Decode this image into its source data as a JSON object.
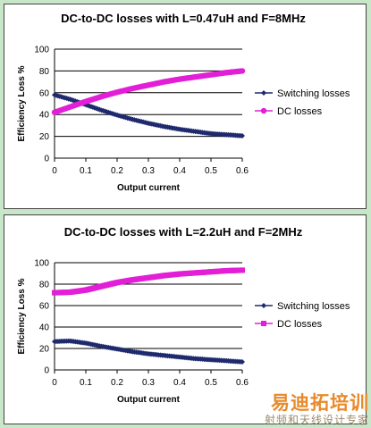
{
  "colors": {
    "switching": "#1f2a6e",
    "dc": "#e21fd6",
    "grid": "#000000",
    "background": "#c8e6c8"
  },
  "chart_data": [
    {
      "type": "line",
      "title": "DC-to-DC losses with L=0.47uH and F=8MHz",
      "xlabel": "Output current",
      "ylabel": "Efficiency Loss %",
      "xlim": [
        0,
        0.6
      ],
      "ylim": [
        0,
        100
      ],
      "xticks": [
        "0",
        "0.1",
        "0.2",
        "0.3",
        "0.4",
        "0.5",
        "0.6"
      ],
      "yticks": [
        "0",
        "20",
        "40",
        "60",
        "80",
        "100"
      ],
      "legend_position": "right",
      "series": [
        {
          "name": "Switching losses",
          "marker": "diamond",
          "x": [
            0,
            0.05,
            0.1,
            0.15,
            0.2,
            0.25,
            0.3,
            0.35,
            0.4,
            0.45,
            0.5,
            0.55,
            0.6
          ],
          "values": [
            58,
            54,
            49,
            44,
            39.5,
            35.5,
            32,
            29,
            26.5,
            24.5,
            22.5,
            21.5,
            20.5
          ]
        },
        {
          "name": "DC losses",
          "marker": "circle",
          "x": [
            0,
            0.05,
            0.1,
            0.15,
            0.2,
            0.25,
            0.3,
            0.35,
            0.4,
            0.45,
            0.5,
            0.55,
            0.6
          ],
          "values": [
            42,
            47,
            52,
            56.5,
            60.5,
            64,
            67,
            70,
            72.5,
            74.5,
            76.5,
            78.5,
            80
          ]
        }
      ]
    },
    {
      "type": "line",
      "title": "DC-to-DC losses with L=2.2uH and F=2MHz",
      "xlabel": "Output current",
      "ylabel": "Efficiency Loss %",
      "xlim": [
        0,
        0.6
      ],
      "ylim": [
        0,
        100
      ],
      "xticks": [
        "0",
        "0.1",
        "0.2",
        "0.3",
        "0.4",
        "0.5",
        "0.6"
      ],
      "yticks": [
        "0",
        "20",
        "40",
        "60",
        "80",
        "100"
      ],
      "legend_position": "right",
      "series": [
        {
          "name": "Switching losses",
          "marker": "diamond",
          "x": [
            0,
            0.05,
            0.1,
            0.15,
            0.2,
            0.25,
            0.3,
            0.35,
            0.4,
            0.45,
            0.5,
            0.55,
            0.6
          ],
          "values": [
            26.5,
            27,
            25,
            22,
            19.5,
            17,
            15,
            13.5,
            12,
            10.5,
            9.5,
            8.5,
            7.5
          ]
        },
        {
          "name": "DC losses",
          "marker": "square",
          "x": [
            0,
            0.05,
            0.1,
            0.15,
            0.2,
            0.25,
            0.3,
            0.35,
            0.4,
            0.45,
            0.5,
            0.55,
            0.6
          ],
          "values": [
            72,
            72.5,
            74.5,
            78,
            81.5,
            84,
            86,
            88,
            89.5,
            90.5,
            91.5,
            92.5,
            93
          ]
        }
      ]
    }
  ],
  "watermark": {
    "main": "易迪拓培训",
    "sub": "射频和天线设计专家"
  }
}
